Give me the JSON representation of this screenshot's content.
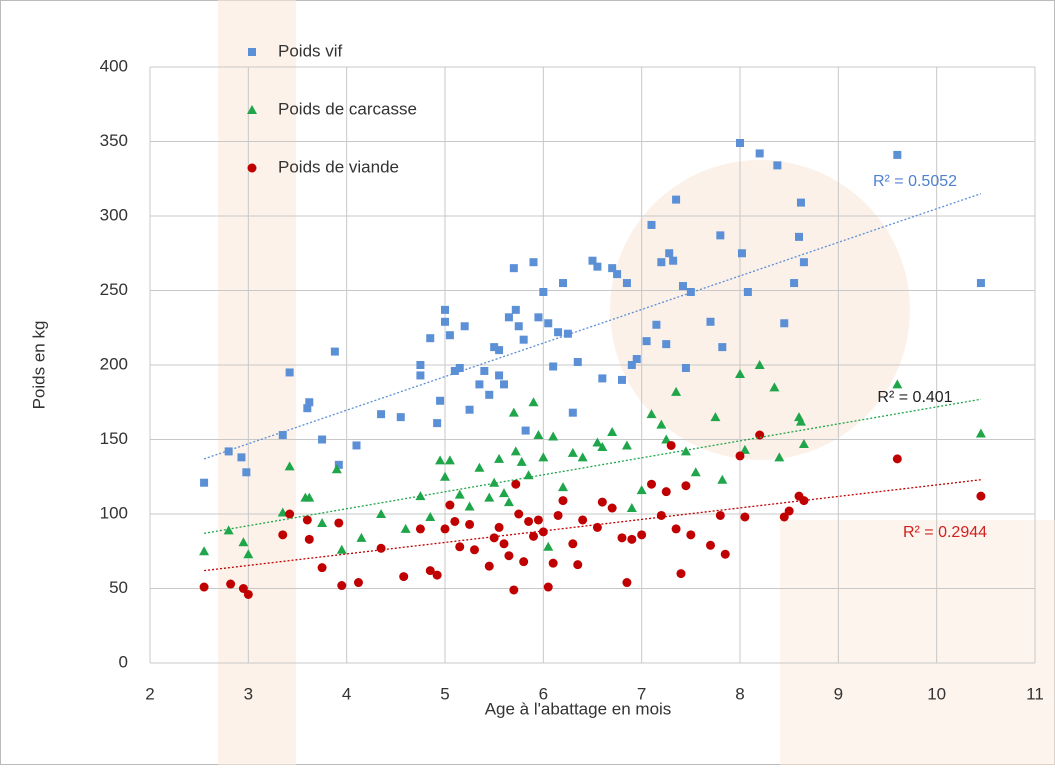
{
  "chart_data": {
    "type": "scatter",
    "x_label": "Age à l'abattage en mois",
    "y_label": "Poids en kg",
    "xlim": [
      2,
      11
    ],
    "xticks": [
      2,
      3,
      4,
      5,
      6,
      7,
      8,
      9,
      10,
      11
    ],
    "ylim": [
      0,
      400
    ],
    "yticks": [
      0,
      50,
      100,
      150,
      200,
      250,
      300,
      350,
      400
    ],
    "grid": true,
    "legend": "top-left",
    "series": [
      {
        "name": "Poids vif",
        "color": "#5b8fd6",
        "marker": "square",
        "x": [
          2.55,
          2.8,
          2.93,
          2.98,
          3.35,
          3.42,
          3.6,
          3.62,
          3.75,
          3.88,
          3.92,
          4.1,
          4.35,
          4.55,
          4.75,
          4.75,
          4.85,
          4.92,
          4.95,
          5.0,
          5.0,
          5.05,
          5.1,
          5.15,
          5.2,
          5.25,
          5.35,
          5.4,
          5.45,
          5.5,
          5.55,
          5.55,
          5.6,
          5.65,
          5.7,
          5.72,
          5.75,
          5.8,
          5.82,
          5.9,
          5.95,
          6.0,
          6.05,
          6.1,
          6.15,
          6.2,
          6.25,
          6.3,
          6.35,
          6.5,
          6.55,
          6.6,
          6.7,
          6.75,
          6.8,
          6.85,
          6.9,
          6.95,
          7.05,
          7.1,
          7.15,
          7.2,
          7.25,
          7.28,
          7.32,
          7.35,
          7.42,
          7.45,
          7.5,
          7.7,
          7.8,
          7.82,
          8.0,
          8.02,
          8.08,
          8.2,
          8.38,
          8.45,
          8.55,
          8.6,
          8.62,
          8.65,
          9.6,
          10.45
        ],
        "values": [
          121,
          142,
          138,
          128,
          153,
          195,
          171,
          175,
          150,
          209,
          133,
          146,
          167,
          165,
          200,
          193,
          218,
          161,
          176,
          237,
          229,
          220,
          196,
          198,
          226,
          170,
          187,
          196,
          180,
          212,
          210,
          193,
          187,
          232,
          265,
          237,
          226,
          217,
          156,
          269,
          232,
          249,
          228,
          199,
          222,
          255,
          221,
          168,
          202,
          270,
          266,
          191,
          265,
          261,
          190,
          255,
          200,
          204,
          216,
          294,
          227,
          269,
          214,
          275,
          270,
          311,
          253,
          198,
          249,
          229,
          287,
          212,
          349,
          275,
          249,
          342,
          334,
          228,
          255,
          286,
          309,
          269,
          341,
          255
        ]
      },
      {
        "name": "Poids de carcasse",
        "color": "#1fa64a",
        "marker": "triangle",
        "x": [
          2.55,
          2.8,
          2.95,
          3.0,
          3.35,
          3.42,
          3.58,
          3.62,
          3.75,
          3.9,
          3.95,
          4.15,
          4.35,
          4.6,
          4.75,
          4.85,
          4.95,
          5.0,
          5.05,
          5.15,
          5.25,
          5.35,
          5.45,
          5.5,
          5.55,
          5.6,
          5.65,
          5.7,
          5.72,
          5.78,
          5.85,
          5.9,
          5.95,
          6.0,
          6.05,
          6.1,
          6.2,
          6.3,
          6.4,
          6.55,
          6.6,
          6.7,
          6.85,
          6.9,
          7.0,
          7.1,
          7.2,
          7.25,
          7.35,
          7.45,
          7.55,
          7.75,
          7.82,
          8.0,
          8.05,
          8.2,
          8.35,
          8.4,
          8.6,
          8.62,
          8.65,
          9.6,
          10.45
        ],
        "values": [
          75,
          89,
          81,
          73,
          101,
          132,
          111,
          111,
          94,
          130,
          76,
          84,
          100,
          90,
          112,
          98,
          136,
          125,
          136,
          113,
          105,
          131,
          111,
          121,
          137,
          114,
          108,
          168,
          142,
          135,
          126,
          175,
          153,
          138,
          78,
          152,
          118,
          141,
          138,
          148,
          145,
          155,
          146,
          104,
          116,
          167,
          160,
          150,
          182,
          142,
          128,
          165,
          123,
          194,
          143,
          200,
          185,
          138,
          165,
          162,
          147,
          187,
          154
        ]
      },
      {
        "name": "Poids de viande",
        "color": "#c00000",
        "marker": "circle",
        "x": [
          2.55,
          2.82,
          2.95,
          3.0,
          3.35,
          3.42,
          3.6,
          3.62,
          3.75,
          3.92,
          3.95,
          4.12,
          4.35,
          4.58,
          4.75,
          4.85,
          4.92,
          5.0,
          5.05,
          5.1,
          5.15,
          5.25,
          5.3,
          5.45,
          5.5,
          5.55,
          5.6,
          5.65,
          5.7,
          5.72,
          5.75,
          5.8,
          5.85,
          5.9,
          5.95,
          6.0,
          6.05,
          6.1,
          6.15,
          6.2,
          6.3,
          6.35,
          6.4,
          6.55,
          6.6,
          6.7,
          6.8,
          6.85,
          6.9,
          7.0,
          7.1,
          7.2,
          7.25,
          7.3,
          7.35,
          7.4,
          7.45,
          7.5,
          7.7,
          7.8,
          7.85,
          8.0,
          8.05,
          8.2,
          8.45,
          8.5,
          8.6,
          8.65,
          9.6,
          10.45
        ],
        "values": [
          51,
          53,
          50,
          46,
          86,
          100,
          96,
          83,
          64,
          94,
          52,
          54,
          77,
          58,
          90,
          62,
          59,
          90,
          106,
          95,
          78,
          93,
          76,
          65,
          84,
          91,
          80,
          72,
          49,
          120,
          100,
          68,
          95,
          85,
          96,
          88,
          51,
          67,
          99,
          109,
          80,
          66,
          96,
          91,
          108,
          104,
          84,
          54,
          83,
          86,
          120,
          99,
          115,
          146,
          90,
          60,
          119,
          86,
          79,
          99,
          73,
          139,
          98,
          153,
          98,
          102,
          112,
          109,
          137,
          112
        ]
      }
    ],
    "trendlines": [
      {
        "color": "#5b8fd6",
        "label_color": "#4f81d0",
        "x": [
          2.55,
          10.45
        ],
        "y": [
          137,
          315
        ],
        "label": "R² = 0.5052"
      },
      {
        "color": "#1fa64a",
        "label_color": "#222222",
        "x": [
          2.55,
          10.45
        ],
        "y": [
          87,
          177
        ],
        "label": "R² = 0.401"
      },
      {
        "color": "#c00000",
        "label_color": "#d02020",
        "x": [
          2.55,
          10.45
        ],
        "y": [
          62,
          123
        ],
        "label": "R² = 0.2944"
      }
    ]
  }
}
